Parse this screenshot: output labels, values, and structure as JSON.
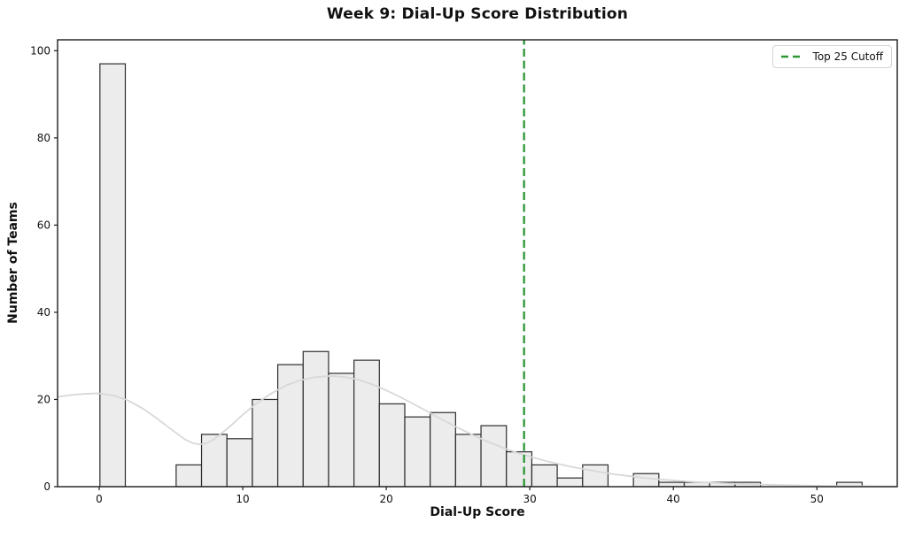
{
  "chart_data": {
    "type": "bar",
    "subtype": "histogram_with_kde",
    "title": "Week 9: Dial-Up Score Distribution",
    "xlabel": "Dial-Up Score",
    "ylabel": "Number of Teams",
    "xlim": [
      -2.9,
      55.6
    ],
    "ylim": [
      0,
      102.5
    ],
    "x_ticks": [
      0,
      10,
      20,
      30,
      40,
      50
    ],
    "y_ticks": [
      0,
      20,
      40,
      60,
      80,
      100
    ],
    "grid": false,
    "bins": {
      "start": 0.05,
      "width": 1.77,
      "counts": [
        97,
        0,
        0,
        5,
        12,
        11,
        20,
        28,
        31,
        26,
        29,
        19,
        16,
        17,
        12,
        14,
        8,
        5,
        2,
        5,
        0,
        3,
        1,
        1,
        1,
        1,
        0,
        0,
        0,
        1
      ]
    },
    "kde_curve": {
      "x": [
        -2.9,
        -2,
        -1,
        0,
        1,
        2,
        3,
        4,
        5,
        6,
        6.5,
        7,
        7.5,
        8,
        9,
        10,
        11,
        12,
        13,
        14,
        15,
        16,
        17,
        18,
        19,
        20,
        21,
        22,
        23,
        24,
        25,
        26,
        27,
        28,
        29,
        30,
        31,
        32,
        33,
        34,
        35,
        36,
        37,
        38,
        39,
        40,
        41,
        42,
        43,
        44,
        45,
        46,
        47,
        48,
        49,
        50,
        51,
        52,
        53,
        54,
        55.6
      ],
      "y": [
        20.6,
        21.0,
        21.3,
        21.4,
        20.9,
        19.8,
        18.0,
        15.7,
        13.2,
        10.8,
        10.0,
        9.7,
        10.0,
        10.9,
        13.5,
        16.5,
        19.2,
        21.4,
        23.2,
        24.4,
        25.1,
        25.4,
        25.2,
        24.6,
        23.5,
        22.1,
        20.5,
        18.8,
        17.0,
        15.2,
        13.5,
        11.9,
        10.4,
        9.1,
        7.9,
        6.9,
        6.0,
        5.2,
        4.5,
        3.9,
        3.3,
        2.8,
        2.4,
        2.0,
        1.7,
        1.45,
        1.2,
        1.0,
        0.85,
        0.7,
        0.6,
        0.5,
        0.4,
        0.33,
        0.27,
        0.22,
        0.18,
        0.15,
        0.12,
        0.1,
        0.08
      ]
    },
    "cutoff_line": {
      "x": 29.6,
      "style": "dashed"
    },
    "legend": {
      "position": "upper-right",
      "entries": [
        {
          "label": "Top 25 Cutoff",
          "style": "dashed"
        }
      ]
    },
    "colors": {
      "bar_fill": "#ececec",
      "bar_edge": "#2d2d2d",
      "kde": "#d8d8d8",
      "cutoff": "#2d9636",
      "axis": "#1c1c1c",
      "tick_text": "#111111",
      "background": "#ffffff",
      "legend_border": "#d4d4d4"
    }
  }
}
